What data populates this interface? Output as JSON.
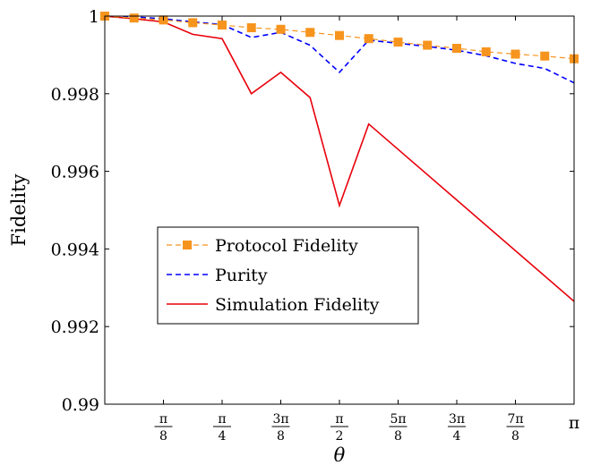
{
  "chart_data": {
    "type": "line",
    "xlabel": "θ",
    "ylabel": "Fidelity",
    "xlim": [
      0,
      3.14159
    ],
    "ylim": [
      0.99,
      1.0
    ],
    "yticks": [
      {
        "v": 0.99,
        "label": "0.99"
      },
      {
        "v": 0.992,
        "label": "0.992"
      },
      {
        "v": 0.994,
        "label": "0.994"
      },
      {
        "v": 0.996,
        "label": "0.996"
      },
      {
        "v": 0.998,
        "label": "0.998"
      },
      {
        "v": 1.0,
        "label": "1"
      }
    ],
    "xticks": [
      {
        "v": 0.3927,
        "num": "π",
        "den": "8"
      },
      {
        "v": 0.7854,
        "num": "π",
        "den": "4"
      },
      {
        "v": 1.1781,
        "num": "3π",
        "den": "8"
      },
      {
        "v": 1.5708,
        "num": "π",
        "den": "2"
      },
      {
        "v": 1.9635,
        "num": "5π",
        "den": "8"
      },
      {
        "v": 2.3562,
        "num": "3π",
        "den": "4"
      },
      {
        "v": 2.7489,
        "num": "7π",
        "den": "8"
      },
      {
        "v": 3.1416,
        "plain": "π"
      }
    ],
    "legend_position": "center-left",
    "series": [
      {
        "name": "Protocol Fidelity",
        "style": "dashed-square-markers",
        "color": "#f7941d",
        "x": [
          0,
          0.1963,
          0.3927,
          0.589,
          0.7854,
          0.9817,
          1.1781,
          1.3744,
          1.5708,
          1.7671,
          1.9635,
          2.1598,
          2.3562,
          2.5525,
          2.7489,
          2.9452,
          3.1416
        ],
        "y": [
          1.0,
          0.99995,
          0.9999,
          0.99983,
          0.99977,
          0.9997,
          0.99966,
          0.99958,
          0.9995,
          0.99942,
          0.99933,
          0.99925,
          0.99917,
          0.99908,
          0.99902,
          0.99897,
          0.9989
        ]
      },
      {
        "name": "Purity",
        "style": "dashed",
        "color": "#0000ff",
        "x": [
          0,
          0.1963,
          0.3927,
          0.589,
          0.7854,
          0.9817,
          1.1781,
          1.3744,
          1.5708,
          1.7671,
          1.9635,
          2.1598,
          2.3562,
          2.5525,
          2.7489,
          2.9452,
          3.1416
        ],
        "y": [
          1.0,
          0.99998,
          0.99993,
          0.99985,
          0.99978,
          0.99945,
          0.99958,
          0.99925,
          0.99855,
          0.99938,
          0.9993,
          0.99922,
          0.99912,
          0.99898,
          0.99878,
          0.99865,
          0.99828
        ]
      },
      {
        "name": "Simulation Fidelity",
        "style": "solid",
        "color": "#e8000b",
        "x": [
          0,
          0.1963,
          0.3927,
          0.589,
          0.7854,
          0.9817,
          1.1781,
          1.3744,
          1.5708,
          1.7671,
          3.1416
        ],
        "y": [
          1.0,
          0.99993,
          0.99985,
          0.99953,
          0.99942,
          0.998,
          0.99855,
          0.9979,
          0.99512,
          0.99722,
          0.99265
        ]
      }
    ]
  }
}
